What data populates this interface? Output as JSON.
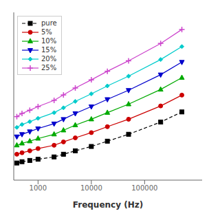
{
  "chart_data": {
    "type": "line",
    "xlabel": "Frequency (Hz)",
    "x": [
      400,
      500,
      700,
      1000,
      2000,
      3000,
      5000,
      10000,
      20000,
      50000,
      200000,
      500000
    ],
    "series": [
      {
        "name": "pure",
        "color": "#000000",
        "marker": "square",
        "line_style": "dashed",
        "values": [
          0.005,
          0.0052,
          0.0054,
          0.0056,
          0.006,
          0.0065,
          0.0072,
          0.0082,
          0.0096,
          0.0118,
          0.017,
          0.023
        ]
      },
      {
        "name": "5%",
        "color": "#cc0000",
        "marker": "circle",
        "line_style": "solid",
        "values": [
          0.0065,
          0.0068,
          0.0072,
          0.0077,
          0.0085,
          0.0094,
          0.0106,
          0.0124,
          0.0148,
          0.0185,
          0.0275,
          0.038
        ]
      },
      {
        "name": "10%",
        "color": "#00aa00",
        "marker": "triangle-up",
        "line_style": "solid",
        "values": [
          0.0085,
          0.009,
          0.0096,
          0.0104,
          0.0118,
          0.0133,
          0.0155,
          0.0185,
          0.0225,
          0.029,
          0.045,
          0.064
        ]
      },
      {
        "name": "15%",
        "color": "#0000cc",
        "marker": "triangle-down",
        "line_style": "solid",
        "values": [
          0.011,
          0.0118,
          0.0128,
          0.014,
          0.0162,
          0.0185,
          0.022,
          0.027,
          0.0335,
          0.044,
          0.07,
          0.102
        ]
      },
      {
        "name": "20%",
        "color": "#00cccc",
        "marker": "diamond",
        "line_style": "solid",
        "values": [
          0.0145,
          0.0158,
          0.0172,
          0.019,
          0.0225,
          0.026,
          0.0315,
          0.0395,
          0.05,
          0.067,
          0.11,
          0.162
        ]
      },
      {
        "name": "25%",
        "color": "#cc44cc",
        "marker": "plus",
        "line_style": "solid",
        "values": [
          0.02,
          0.022,
          0.0242,
          0.027,
          0.0325,
          0.0382,
          0.047,
          0.06,
          0.0775,
          0.106,
          0.178,
          0.27
        ]
      }
    ],
    "xlim": [
      350,
      1200000
    ],
    "ylim": [
      0.003,
      0.45
    ],
    "xticks": [
      1000,
      10000,
      100000
    ],
    "log": true,
    "grid": false,
    "legend": "upper left",
    "tick_labels": "x"
  }
}
